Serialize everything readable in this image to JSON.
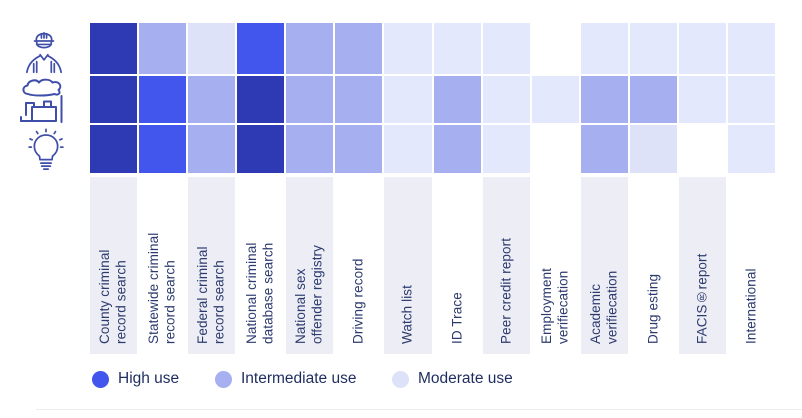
{
  "chart_data": {
    "type": "heatmap",
    "columns": [
      "County criminal\nrecord search",
      "Statewide criminal\nrecord search",
      "Federal criminal\nrecord search",
      "National criminal\ndatabase search",
      "National sex\noffender registry",
      "Driving record",
      "Watch list",
      "ID Trace",
      "Peer credit report",
      "Employment\nverifiecation",
      "Academic\nverifiecation",
      "Drug esting",
      "FACIS®report",
      "International"
    ],
    "row_icons": [
      "worker-icon",
      "industry-icon",
      "lightbulb-icon"
    ],
    "series": [
      {
        "name": "worker",
        "values": [
          "high-dark",
          "intermediate",
          "moderate",
          "high",
          "intermediate",
          "intermediate",
          "light",
          "light",
          "light",
          "none",
          "light",
          "light",
          "light",
          "light"
        ]
      },
      {
        "name": "industry",
        "values": [
          "high-dark",
          "high",
          "intermediate",
          "high-dark",
          "intermediate",
          "intermediate",
          "light",
          "intermediate",
          "light",
          "light",
          "intermediate",
          "intermediate",
          "light",
          "light"
        ]
      },
      {
        "name": "lightbulb",
        "values": [
          "high-dark",
          "high",
          "intermediate",
          "high-dark",
          "intermediate",
          "intermediate",
          "light",
          "intermediate",
          "light",
          "none",
          "intermediate",
          "moderate",
          "none",
          "light"
        ]
      }
    ],
    "level_colors": {
      "high-dark": "#2d3ab3",
      "high": "#4255ec",
      "intermediate": "#a6b0f0",
      "moderate": "#dde2f8",
      "light": "#e4e8fc",
      "none": "#ffffff"
    },
    "legend": [
      {
        "label": "High use",
        "color": "#4255ec"
      },
      {
        "label": "Intermediate use",
        "color": "#a6b0f0"
      },
      {
        "label": "Moderate use",
        "color": "#dde2f8"
      }
    ],
    "layout": {
      "legend_position": "bottom",
      "grid": false
    }
  },
  "colors": {
    "strip_shaded": "#ededf5",
    "label_text": "#2c3b6e",
    "legend_text": "#1e2d5f",
    "icon_stroke": "#3f4ea9",
    "divider": "#ebebf0"
  }
}
